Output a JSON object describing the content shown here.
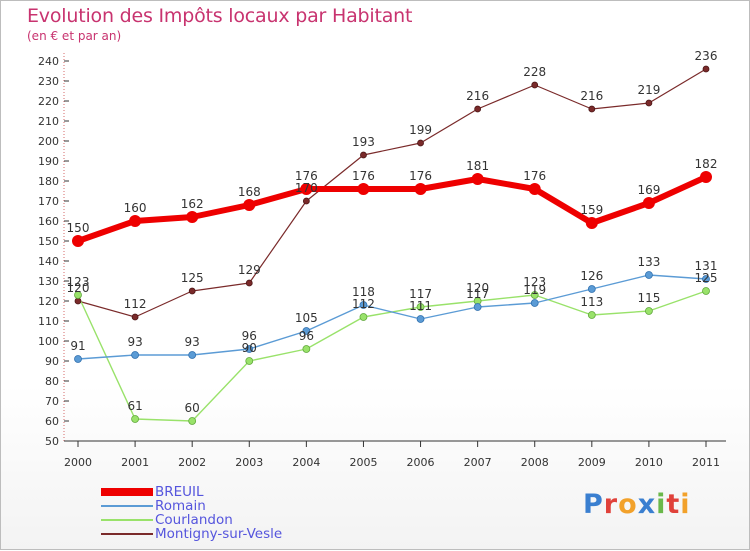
{
  "title": "Evolution des Impôts locaux par Habitant",
  "subtitle": "(en € et par an)",
  "logo_text": "Proxiti",
  "chart_data": {
    "type": "line",
    "categories": [
      "2000",
      "2001",
      "2002",
      "2003",
      "2004",
      "2005",
      "2006",
      "2007",
      "2008",
      "2009",
      "2010",
      "2011"
    ],
    "ylim": [
      50,
      240
    ],
    "yticks": [
      50,
      60,
      70,
      80,
      90,
      100,
      110,
      120,
      130,
      140,
      150,
      160,
      170,
      180,
      190,
      200,
      210,
      220,
      230,
      240
    ],
    "grid": false,
    "legend_position": "bottom-left",
    "series": [
      {
        "name": "BREUIL",
        "color": "#ee0000",
        "text_color": "#5555dd",
        "values": [
          150,
          160,
          162,
          168,
          176,
          176,
          176,
          181,
          176,
          159,
          169,
          182
        ]
      },
      {
        "name": "Romain",
        "color": "#5b9bd5",
        "text_color": "#5555dd",
        "values": [
          91,
          93,
          93,
          96,
          105,
          118,
          111,
          117,
          119,
          126,
          133,
          131
        ]
      },
      {
        "name": "Courlandon",
        "color": "#99e26a",
        "text_color": "#5555dd",
        "values": [
          123,
          61,
          60,
          90,
          96,
          112,
          117,
          120,
          123,
          113,
          115,
          125
        ]
      },
      {
        "name": "Montigny-sur-Vesle",
        "color": "#7a2a2a",
        "text_color": "#5555dd",
        "values": [
          120,
          112,
          125,
          129,
          170,
          193,
          199,
          216,
          228,
          216,
          219,
          236
        ]
      }
    ]
  }
}
